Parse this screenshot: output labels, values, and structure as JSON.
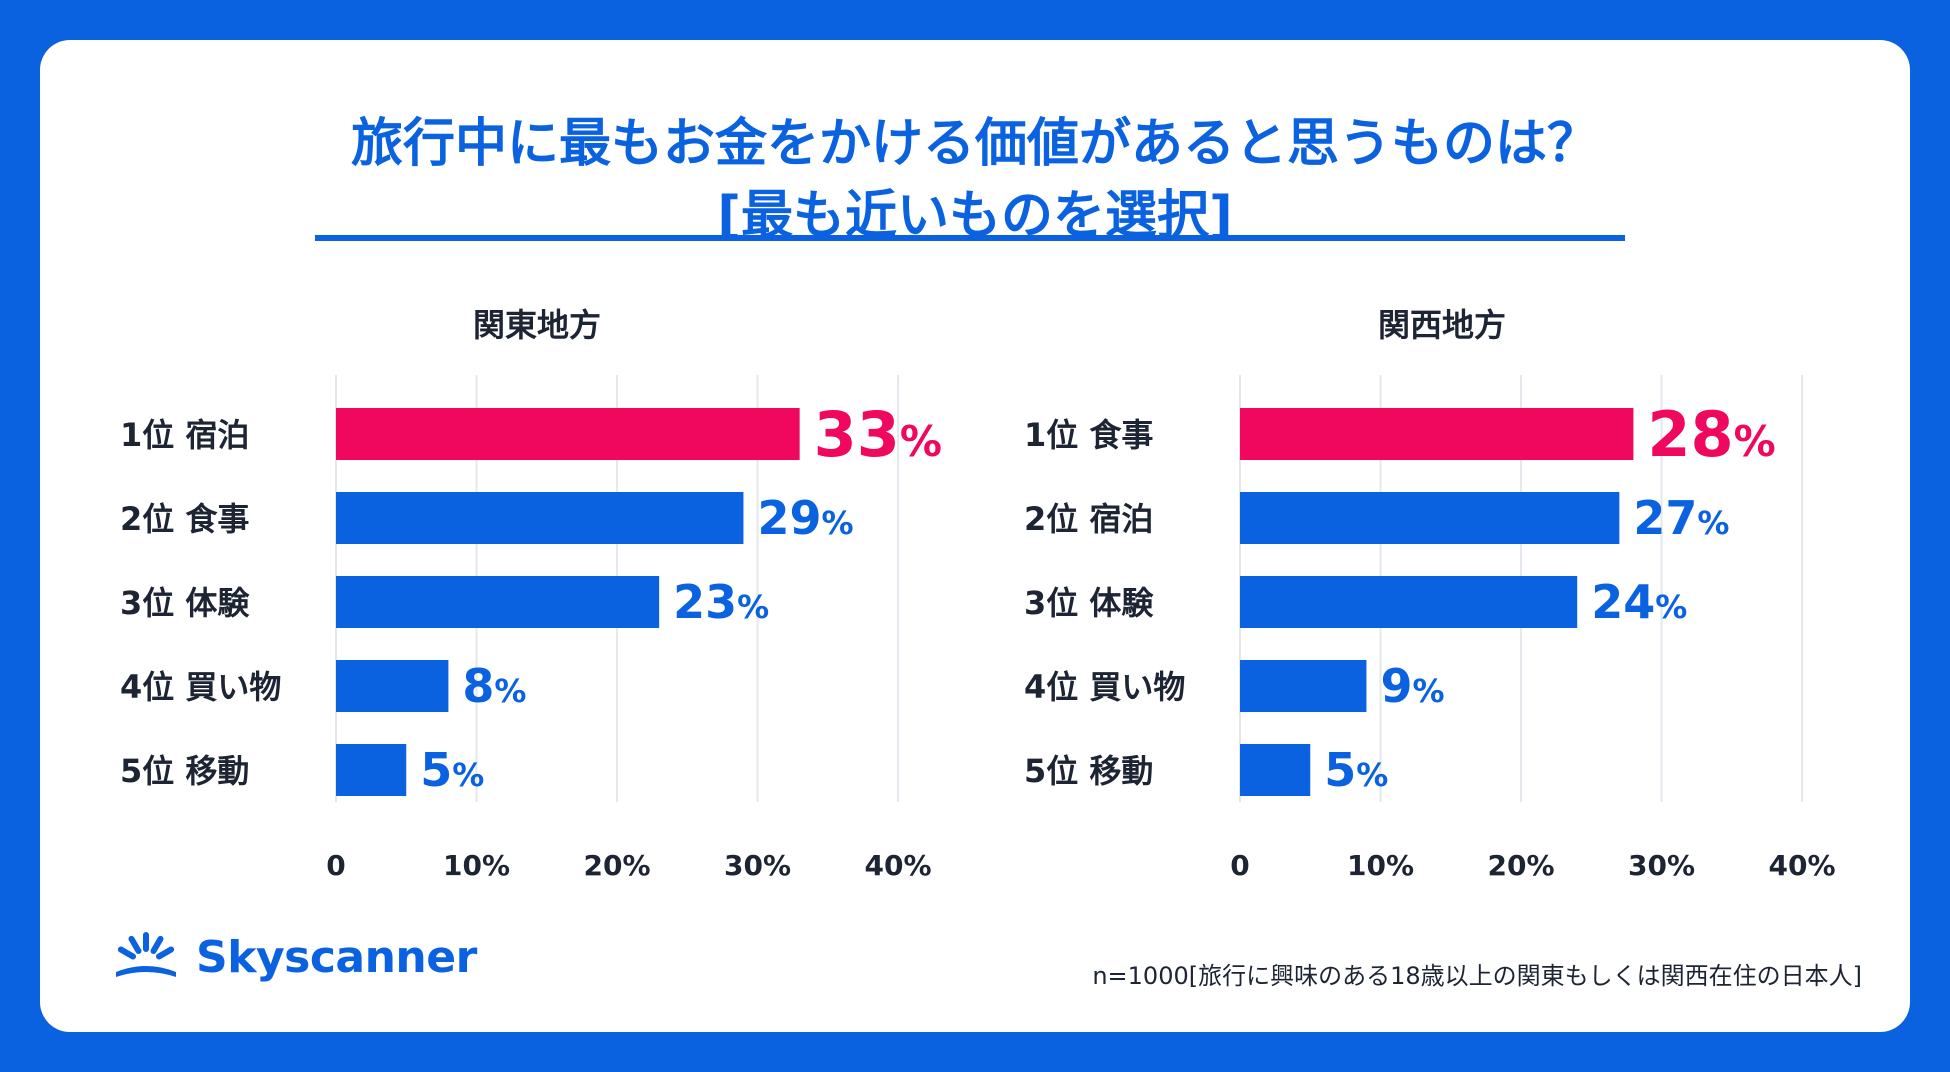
{
  "title_line1": "旅行中に最もお金をかける価値があると思うものは？",
  "title_line2": "[最も近いものを選択]",
  "colors": {
    "background": "#0A62E0",
    "bar": "#0A62E0",
    "highlight": "#F0075E",
    "grid": "#E4E7EE",
    "label": "#1d2433"
  },
  "chart_data": [
    {
      "type": "bar",
      "orientation": "horizontal",
      "title": "関東地方",
      "categories": [
        "1位 宿泊",
        "2位 食事",
        "3位 体験",
        "4位 買い物",
        "5位 移動"
      ],
      "values": [
        33,
        29,
        23,
        8,
        5
      ],
      "value_labels": [
        "33",
        "29",
        "23",
        "8",
        "5"
      ],
      "unit": "%",
      "highlight_index": 0,
      "xlim": [
        0,
        40
      ],
      "xticks": [
        "0",
        "10%",
        "20%",
        "30%",
        "40%"
      ],
      "grid": true
    },
    {
      "type": "bar",
      "orientation": "horizontal",
      "title": "関西地方",
      "categories": [
        "1位 食事",
        "2位 宿泊",
        "3位 体験",
        "4位 買い物",
        "5位 移動"
      ],
      "values": [
        28,
        27,
        24,
        9,
        5
      ],
      "value_labels": [
        "28",
        "27",
        "24",
        "9",
        "5"
      ],
      "unit": "%",
      "highlight_index": 0,
      "xlim": [
        0,
        40
      ],
      "xticks": [
        "0",
        "10%",
        "20%",
        "30%",
        "40%"
      ],
      "grid": true
    }
  ],
  "logo": {
    "brand": "Skyscanner",
    "icon": "sunrise-icon"
  },
  "footnote": "n=1000[旅行に興味のある18歳以上の関東もしくは関西在住の日本人]"
}
